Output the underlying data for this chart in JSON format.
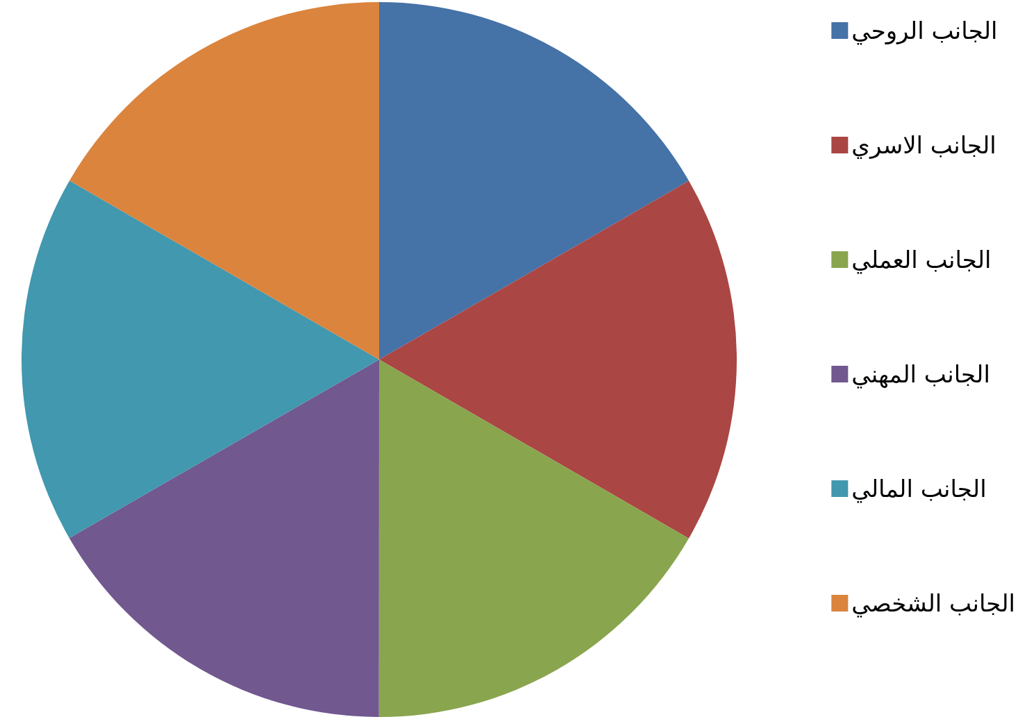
{
  "chart_data": {
    "type": "pie",
    "categories": [
      "الجانب الروحي",
      "الجانب الاسري",
      "الجانب العملي",
      "الجانب المهني",
      "الجانب المالي",
      "الجانب الشخصي"
    ],
    "values": [
      16.67,
      16.67,
      16.67,
      16.67,
      16.66,
      16.66
    ],
    "colors": [
      "#4572a7",
      "#aa4643",
      "#89a54e",
      "#71588f",
      "#4198af",
      "#db843d"
    ],
    "legend": "right"
  }
}
